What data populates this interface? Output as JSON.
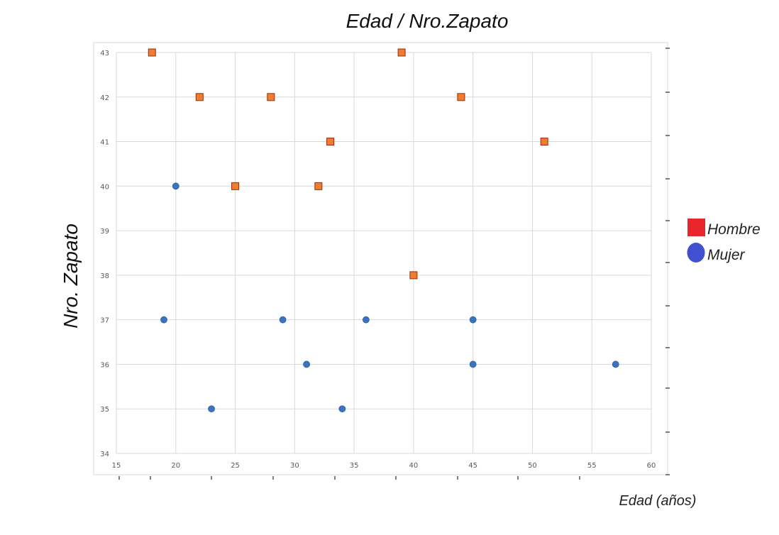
{
  "chart_data": {
    "type": "scatter",
    "title": "Edad / Nro.Zapato",
    "xlabel": "Edad (años)",
    "ylabel": "Nro. Zapato",
    "xlim": [
      15,
      60
    ],
    "ylim": [
      34,
      43
    ],
    "x_ticks": [
      15,
      20,
      25,
      30,
      35,
      40,
      45,
      50,
      55,
      60
    ],
    "y_ticks": [
      34,
      35,
      36,
      37,
      38,
      39,
      40,
      41,
      42,
      43
    ],
    "grid": true,
    "legend_position": "right",
    "series": [
      {
        "name": "Hombre",
        "marker": "square",
        "color": "#ED7D31",
        "legend_color": "#E8262B",
        "points": [
          [
            18,
            43
          ],
          [
            22,
            42
          ],
          [
            25,
            40
          ],
          [
            28,
            42
          ],
          [
            32,
            40
          ],
          [
            33,
            41
          ],
          [
            39,
            43
          ],
          [
            40,
            38
          ],
          [
            44,
            42
          ],
          [
            51,
            41
          ]
        ]
      },
      {
        "name": "Mujer",
        "marker": "circle",
        "color": "#3A74C0",
        "legend_color": "#4150D0",
        "points": [
          [
            19,
            37
          ],
          [
            20,
            40
          ],
          [
            23,
            35
          ],
          [
            29,
            37
          ],
          [
            31,
            36
          ],
          [
            34,
            35
          ],
          [
            36,
            37
          ],
          [
            45,
            37
          ],
          [
            45,
            36
          ],
          [
            57,
            36
          ]
        ]
      }
    ]
  }
}
